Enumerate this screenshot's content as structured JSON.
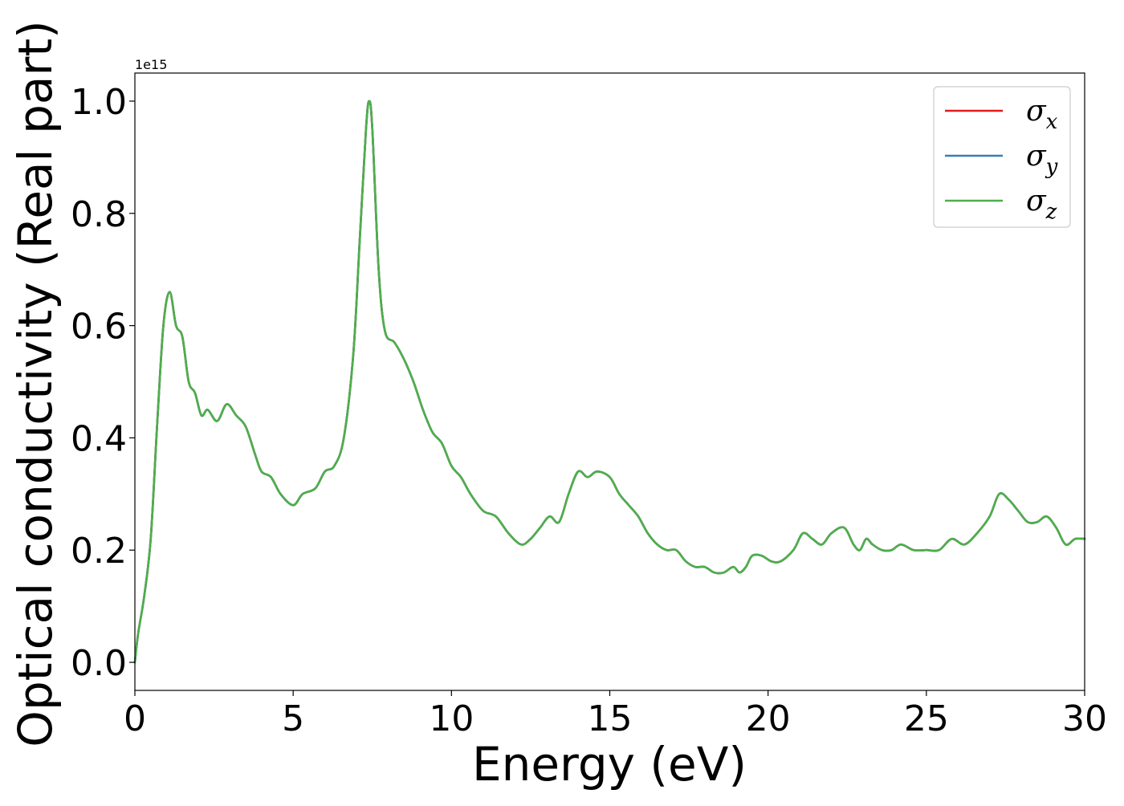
{
  "chart_data": {
    "type": "line",
    "xlabel": "Energy (eV)",
    "ylabel": "Optical conductivity (Real part)",
    "y_offset_text": "1e15",
    "xlim": [
      0,
      30
    ],
    "ylim": [
      -0.05,
      1.05
    ],
    "y_scale_factor": 1000000000000000.0,
    "x_ticks": [
      0,
      5,
      10,
      15,
      20,
      25,
      30
    ],
    "x_tick_labels": [
      "0",
      "5",
      "10",
      "15",
      "20",
      "25",
      "30"
    ],
    "y_ticks": [
      0.0,
      0.2,
      0.4,
      0.6,
      0.8,
      1.0
    ],
    "y_tick_labels": [
      "0.0",
      "0.2",
      "0.4",
      "0.6",
      "0.8",
      "1.0"
    ],
    "grid": false,
    "legend": {
      "placement": "top-right",
      "entries": [
        {
          "label_base": "σ",
          "label_sub": "x",
          "color": "#e41a1c"
        },
        {
          "label_base": "σ",
          "label_sub": "y",
          "color": "#377eb8"
        },
        {
          "label_base": "σ",
          "label_sub": "z",
          "color": "#4daf4a"
        }
      ]
    },
    "x": [
      0,
      0.1,
      0.3,
      0.5,
      0.7,
      0.9,
      1.1,
      1.3,
      1.5,
      1.7,
      1.9,
      2.1,
      2.3,
      2.6,
      2.9,
      3.2,
      3.5,
      3.8,
      4.0,
      4.3,
      4.6,
      5.0,
      5.3,
      5.7,
      6.0,
      6.3,
      6.6,
      6.9,
      7.1,
      7.3,
      7.4,
      7.5,
      7.7,
      7.9,
      8.2,
      8.5,
      8.8,
      9.1,
      9.4,
      9.7,
      10.0,
      10.3,
      10.6,
      11.0,
      11.4,
      11.8,
      12.2,
      12.5,
      12.8,
      13.1,
      13.4,
      13.7,
      14.0,
      14.3,
      14.6,
      15.0,
      15.3,
      15.6,
      15.9,
      16.2,
      16.5,
      16.8,
      17.1,
      17.4,
      17.7,
      18.0,
      18.3,
      18.6,
      18.9,
      19.1,
      19.3,
      19.5,
      19.8,
      20.1,
      20.4,
      20.8,
      21.1,
      21.4,
      21.7,
      22.0,
      22.4,
      22.7,
      22.9,
      23.1,
      23.3,
      23.6,
      23.9,
      24.2,
      24.6,
      25.0,
      25.4,
      25.8,
      26.2,
      26.6,
      27.0,
      27.3,
      27.6,
      27.9,
      28.2,
      28.5,
      28.8,
      29.1,
      29.4,
      29.7,
      30.0
    ],
    "series": [
      {
        "name": "σx",
        "color": "#e41a1c",
        "values": [
          0.0,
          0.05,
          0.12,
          0.22,
          0.42,
          0.6,
          0.66,
          0.6,
          0.58,
          0.5,
          0.48,
          0.44,
          0.45,
          0.43,
          0.46,
          0.44,
          0.42,
          0.37,
          0.34,
          0.33,
          0.3,
          0.28,
          0.3,
          0.31,
          0.34,
          0.35,
          0.4,
          0.55,
          0.75,
          0.95,
          1.0,
          0.95,
          0.7,
          0.59,
          0.57,
          0.54,
          0.5,
          0.45,
          0.41,
          0.39,
          0.35,
          0.33,
          0.3,
          0.27,
          0.26,
          0.23,
          0.21,
          0.22,
          0.24,
          0.26,
          0.25,
          0.3,
          0.34,
          0.33,
          0.34,
          0.33,
          0.3,
          0.28,
          0.26,
          0.23,
          0.21,
          0.2,
          0.2,
          0.18,
          0.17,
          0.17,
          0.16,
          0.16,
          0.17,
          0.16,
          0.17,
          0.19,
          0.19,
          0.18,
          0.18,
          0.2,
          0.23,
          0.22,
          0.21,
          0.23,
          0.24,
          0.21,
          0.2,
          0.22,
          0.21,
          0.2,
          0.2,
          0.21,
          0.2,
          0.2,
          0.2,
          0.22,
          0.21,
          0.23,
          0.26,
          0.3,
          0.29,
          0.27,
          0.25,
          0.25,
          0.26,
          0.24,
          0.21,
          0.22,
          0.22
        ]
      },
      {
        "name": "σy",
        "color": "#377eb8",
        "values": [
          0.0,
          0.05,
          0.12,
          0.22,
          0.42,
          0.6,
          0.66,
          0.6,
          0.58,
          0.5,
          0.48,
          0.44,
          0.45,
          0.43,
          0.46,
          0.44,
          0.42,
          0.37,
          0.34,
          0.33,
          0.3,
          0.28,
          0.3,
          0.31,
          0.34,
          0.35,
          0.4,
          0.55,
          0.75,
          0.95,
          1.0,
          0.95,
          0.7,
          0.59,
          0.57,
          0.54,
          0.5,
          0.45,
          0.41,
          0.39,
          0.35,
          0.33,
          0.3,
          0.27,
          0.26,
          0.23,
          0.21,
          0.22,
          0.24,
          0.26,
          0.25,
          0.3,
          0.34,
          0.33,
          0.34,
          0.33,
          0.3,
          0.28,
          0.26,
          0.23,
          0.21,
          0.2,
          0.2,
          0.18,
          0.17,
          0.17,
          0.16,
          0.16,
          0.17,
          0.16,
          0.17,
          0.19,
          0.19,
          0.18,
          0.18,
          0.2,
          0.23,
          0.22,
          0.21,
          0.23,
          0.24,
          0.21,
          0.2,
          0.22,
          0.21,
          0.2,
          0.2,
          0.21,
          0.2,
          0.2,
          0.2,
          0.22,
          0.21,
          0.23,
          0.26,
          0.3,
          0.29,
          0.27,
          0.25,
          0.25,
          0.26,
          0.24,
          0.21,
          0.22,
          0.22
        ]
      },
      {
        "name": "σz",
        "color": "#4daf4a",
        "values": [
          0.0,
          0.05,
          0.12,
          0.22,
          0.42,
          0.6,
          0.66,
          0.6,
          0.58,
          0.5,
          0.48,
          0.44,
          0.45,
          0.43,
          0.46,
          0.44,
          0.42,
          0.37,
          0.34,
          0.33,
          0.3,
          0.28,
          0.3,
          0.31,
          0.34,
          0.35,
          0.4,
          0.55,
          0.75,
          0.95,
          1.0,
          0.95,
          0.7,
          0.59,
          0.57,
          0.54,
          0.5,
          0.45,
          0.41,
          0.39,
          0.35,
          0.33,
          0.3,
          0.27,
          0.26,
          0.23,
          0.21,
          0.22,
          0.24,
          0.26,
          0.25,
          0.3,
          0.34,
          0.33,
          0.34,
          0.33,
          0.3,
          0.28,
          0.26,
          0.23,
          0.21,
          0.2,
          0.2,
          0.18,
          0.17,
          0.17,
          0.16,
          0.16,
          0.17,
          0.16,
          0.17,
          0.19,
          0.19,
          0.18,
          0.18,
          0.2,
          0.23,
          0.22,
          0.21,
          0.23,
          0.24,
          0.21,
          0.2,
          0.22,
          0.21,
          0.2,
          0.2,
          0.21,
          0.2,
          0.2,
          0.2,
          0.22,
          0.21,
          0.23,
          0.26,
          0.3,
          0.29,
          0.27,
          0.25,
          0.25,
          0.26,
          0.24,
          0.21,
          0.22,
          0.22
        ]
      }
    ]
  }
}
